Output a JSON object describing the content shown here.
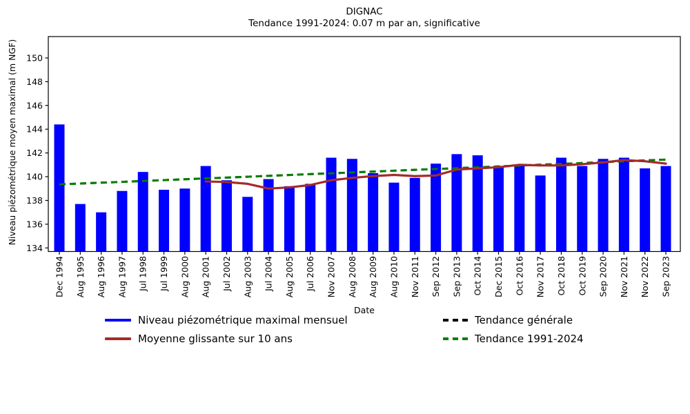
{
  "title": "DIGNAC",
  "subtitle": "Tendance 1991-2024: 0.07 m par an, significative",
  "ylabel": "Niveau piézométrique moyen maximal (m NGF)",
  "xlabel": "Date",
  "colors": {
    "bar": "#0000ff",
    "moving_average": "#a52a2a",
    "trend_general": "#000000",
    "trend_1991_2024": "#008000",
    "axis": "#000000"
  },
  "legend": {
    "items": [
      {
        "label": "Niveau piézométrique maximal mensuel",
        "color": "#0000ff",
        "style": "solid"
      },
      {
        "label": "Moyenne glissante sur 10 ans",
        "color": "#a52a2a",
        "style": "solid"
      },
      {
        "label": "Tendance générale",
        "color": "#000000",
        "style": "dashed"
      },
      {
        "label": "Tendance 1991-2024",
        "color": "#008000",
        "style": "dashed"
      }
    ]
  },
  "chart_data": {
    "type": "bar",
    "title": "DIGNAC",
    "subtitle": "Tendance 1991-2024: 0.07 m par an, significative",
    "xlabel": "Date",
    "ylabel": "Niveau piézométrique moyen maximal (m NGF)",
    "ylim": [
      133.7,
      151.8
    ],
    "yticks": [
      134,
      136,
      138,
      140,
      142,
      144,
      146,
      148,
      150
    ],
    "grid": false,
    "legend_position": "bottom",
    "categories": [
      "Dec 1994",
      "Aug 1995",
      "Aug 1996",
      "Aug 1997",
      "Jul 1998",
      "Jul 1999",
      "Aug 2000",
      "Aug 2001",
      "Jul 2002",
      "Aug 2003",
      "Jul 2004",
      "Aug 2005",
      "Jul 2006",
      "Nov 2007",
      "Aug 2008",
      "Aug 2009",
      "Aug 2010",
      "Nov 2011",
      "Sep 2012",
      "Sep 2013",
      "Oct 2014",
      "Dec 2015",
      "Oct 2016",
      "Nov 2017",
      "Oct 2018",
      "Oct 2019",
      "Sep 2020",
      "Nov 2021",
      "Nov 2022",
      "Sep 2023"
    ],
    "series": [
      {
        "name": "Niveau piézométrique maximal mensuel",
        "type": "bar",
        "color": "#0000ff",
        "values": [
          144.4,
          137.7,
          137.0,
          138.8,
          140.4,
          138.9,
          139.0,
          140.9,
          139.7,
          138.3,
          139.8,
          139.2,
          139.4,
          141.6,
          141.5,
          140.3,
          139.5,
          139.9,
          141.1,
          141.9,
          141.8,
          140.8,
          141.0,
          140.1,
          141.6,
          140.9,
          141.5,
          141.6,
          140.7,
          140.9
        ]
      },
      {
        "name": "Moyenne glissante sur 10 ans",
        "type": "line",
        "color": "#a52a2a",
        "values": [
          null,
          null,
          null,
          null,
          null,
          null,
          null,
          139.6,
          139.55,
          139.4,
          139.0,
          139.1,
          139.3,
          139.7,
          139.9,
          140.05,
          140.15,
          140.05,
          140.1,
          140.6,
          140.7,
          140.8,
          141.0,
          140.95,
          140.95,
          141.05,
          141.2,
          141.4,
          141.3,
          141.1
        ]
      },
      {
        "name": "Tendance générale",
        "type": "trend-dashed",
        "color": "#000000",
        "endpoints": [
          139.35,
          141.45
        ]
      },
      {
        "name": "Tendance 1991-2024",
        "type": "trend-dashed",
        "color": "#008000",
        "endpoints": [
          139.35,
          141.45
        ]
      }
    ]
  }
}
